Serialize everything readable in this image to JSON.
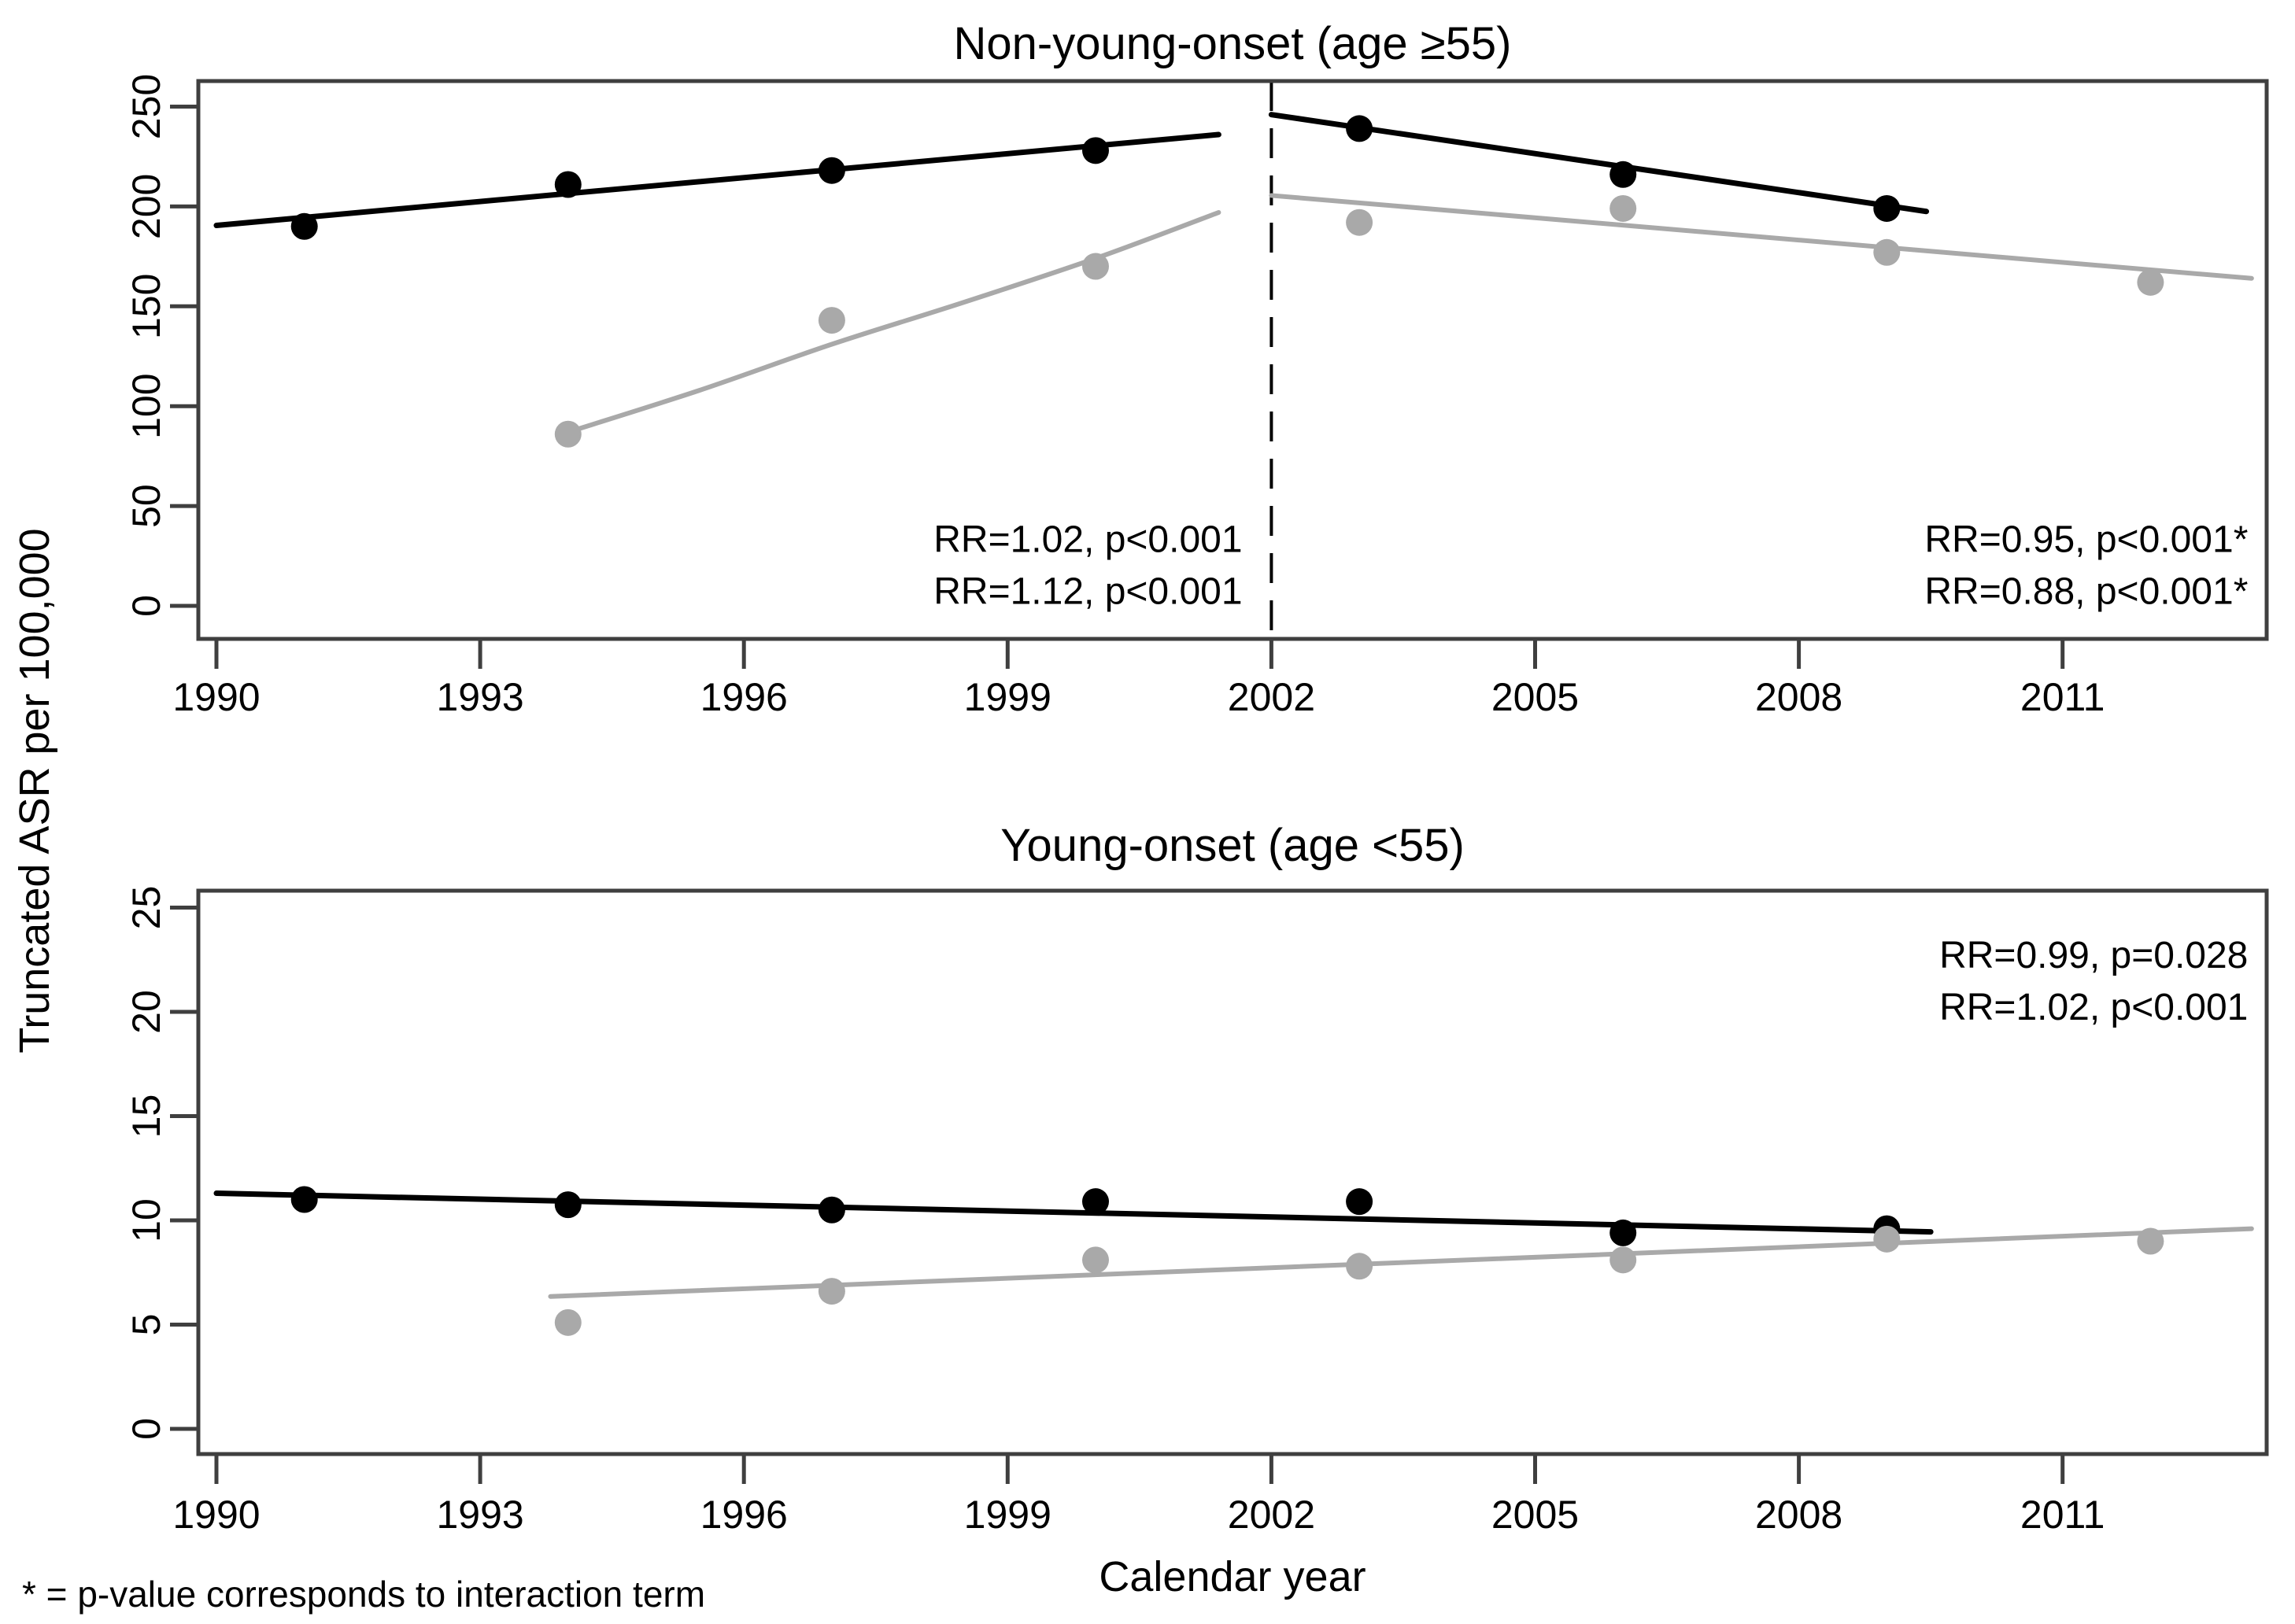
{
  "figure": {
    "y_axis_label": "Truncated ASR per 100,000",
    "x_axis_label": "Calendar year",
    "footnote": "* = p-value corresponds to interaction term",
    "colors": {
      "black": "#000000",
      "gray": "#a9a9a9",
      "frame": "#3f3f3f"
    }
  },
  "chart_data": [
    {
      "type": "scatter",
      "title": "Non-young-onset (age ≥55)",
      "xlabel": "Calendar year",
      "ylabel": "Truncated ASR per 100,000",
      "xlim": [
        1989.8,
        2013.3
      ],
      "ylim": [
        0,
        262
      ],
      "xticks": [
        1990,
        1993,
        1996,
        1999,
        2002,
        2005,
        2008,
        2011
      ],
      "yticks": [
        0,
        50,
        100,
        150,
        200,
        250
      ],
      "grid": false,
      "legend": "none",
      "vline_x": 2002,
      "series": [
        {
          "name": "observed-black",
          "color": "black",
          "marker": "circle",
          "points": [
            [
              1991,
              190
            ],
            [
              1994,
              211
            ],
            [
              1997,
              218
            ],
            [
              2000,
              228
            ],
            [
              2003,
              239
            ],
            [
              2006,
              216
            ],
            [
              2009,
              199
            ]
          ]
        },
        {
          "name": "observed-gray",
          "color": "gray",
          "marker": "circle",
          "points": [
            [
              1994,
              86
            ],
            [
              1997,
              143
            ],
            [
              2000,
              170
            ],
            [
              2003,
              192
            ],
            [
              2006,
              199
            ],
            [
              2009,
              177
            ],
            [
              2012,
              162
            ]
          ]
        }
      ],
      "fits": [
        {
          "name": "fit-black-pre2002",
          "color": "black",
          "smooth": false,
          "points": [
            [
              1990,
              190.5
            ],
            [
              2001.4,
              236
            ]
          ]
        },
        {
          "name": "fit-gray-pre2002",
          "color": "gray",
          "smooth": true,
          "points": [
            [
              1994,
              87
            ],
            [
              1995.5,
              108
            ],
            [
              1997,
              131
            ],
            [
              1998.5,
              152
            ],
            [
              2000,
              174
            ],
            [
              2001.4,
              197
            ]
          ]
        },
        {
          "name": "fit-black-post2002",
          "color": "black",
          "smooth": false,
          "points": [
            [
              2002,
              246
            ],
            [
              2009.45,
              197.5
            ]
          ]
        },
        {
          "name": "fit-gray-post2002",
          "color": "gray",
          "smooth": false,
          "points": [
            [
              2002,
              205.5
            ],
            [
              2013.15,
              164
            ]
          ]
        }
      ],
      "annotations": [
        {
          "text": "RR=1.02, p<0.001",
          "color": "black",
          "x": 2001.67,
          "y": 33,
          "anchor": "end"
        },
        {
          "text": "RR=1.12, p<0.001",
          "color": "gray",
          "x": 2001.67,
          "y": 7,
          "anchor": "end"
        },
        {
          "text": "RR=0.95, p<0.001*",
          "color": "black",
          "x": 2013.11,
          "y": 33,
          "anchor": "end"
        },
        {
          "text": "RR=0.88, p<0.001*",
          "color": "gray",
          "x": 2013.11,
          "y": 7,
          "anchor": "end"
        }
      ]
    },
    {
      "type": "scatter",
      "title": "Young-onset (age <55)",
      "xlabel": "Calendar year",
      "ylabel": "Truncated ASR per 100,000",
      "xlim": [
        1989.8,
        2013.3
      ],
      "ylim": [
        0,
        25.8
      ],
      "xticks": [
        1990,
        1993,
        1996,
        1999,
        2002,
        2005,
        2008,
        2011
      ],
      "yticks": [
        0,
        5,
        10,
        15,
        20,
        25
      ],
      "grid": false,
      "legend": "none",
      "vline_x": null,
      "series": [
        {
          "name": "observed-black",
          "color": "black",
          "marker": "circle",
          "points": [
            [
              1991,
              11.0
            ],
            [
              1994,
              10.75
            ],
            [
              1997,
              10.5
            ],
            [
              2000,
              10.9
            ],
            [
              2003,
              10.9
            ],
            [
              2006,
              9.4
            ],
            [
              2009,
              9.6
            ]
          ]
        },
        {
          "name": "observed-gray",
          "color": "gray",
          "marker": "circle",
          "points": [
            [
              1994,
              5.1
            ],
            [
              1997,
              6.6
            ],
            [
              2000,
              8.1
            ],
            [
              2003,
              7.8
            ],
            [
              2006,
              8.1
            ],
            [
              2009,
              9.1
            ],
            [
              2012,
              9.0
            ]
          ]
        }
      ],
      "fits": [
        {
          "name": "fit-black",
          "color": "black",
          "smooth": false,
          "points": [
            [
              1990,
              11.3
            ],
            [
              2009.5,
              9.45
            ]
          ]
        },
        {
          "name": "fit-gray",
          "color": "gray",
          "smooth": false,
          "points": [
            [
              1993.8,
              6.35
            ],
            [
              2013.15,
              9.6
            ]
          ]
        }
      ],
      "annotations": [
        {
          "text": "RR=0.99, p=0.028",
          "color": "black",
          "x": 2013.11,
          "y": 22.7,
          "anchor": "end"
        },
        {
          "text": "RR=1.02, p<0.001",
          "color": "gray",
          "x": 2013.11,
          "y": 20.2,
          "anchor": "end"
        }
      ]
    }
  ]
}
